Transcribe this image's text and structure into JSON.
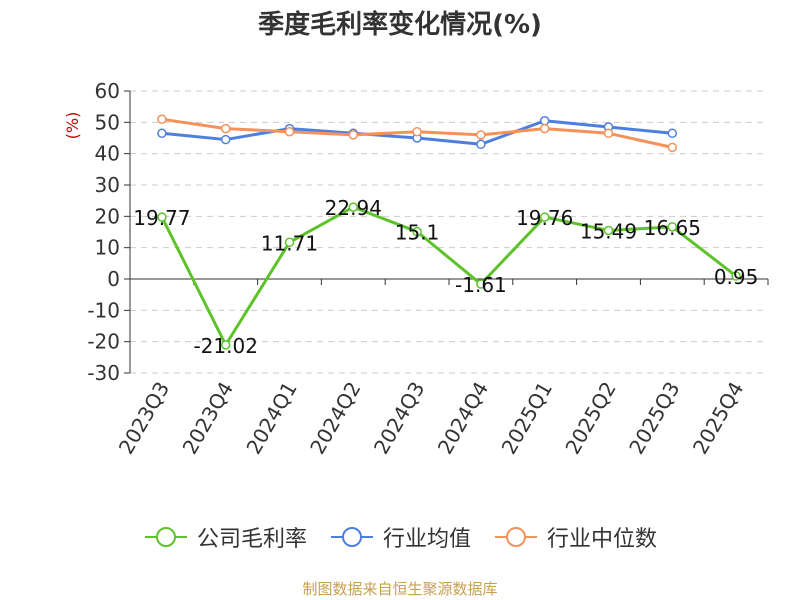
{
  "chart_data": {
    "type": "line",
    "title": "季度毛利率变化情况(%)",
    "ylabel": "(%)",
    "categories": [
      "2023Q3",
      "2023Q4",
      "2024Q1",
      "2024Q2",
      "2024Q3",
      "2024Q4",
      "2025Q1",
      "2025Q2",
      "2025Q3",
      "2025Q4"
    ],
    "ylim": [
      -30,
      60
    ],
    "yticks": [
      "60",
      "50",
      "40",
      "30",
      "20",
      "10",
      "0",
      "-10",
      "-20",
      "-30"
    ],
    "grid": true,
    "legend_position": "bottom",
    "series": [
      {
        "name": "公司毛利率",
        "color": "#5ec22a",
        "values": [
          19.77,
          -21.02,
          11.71,
          22.94,
          15.1,
          -1.61,
          19.76,
          15.49,
          16.65,
          0.95
        ],
        "labels": [
          "19.77",
          "-21.02",
          "11.71",
          "22.94",
          "15.1",
          "-1.61",
          "19.76",
          "15.49",
          "16.65",
          "0.95"
        ]
      },
      {
        "name": "行业均值",
        "color": "#4f7fde",
        "values": [
          46.5,
          44.5,
          48.0,
          46.5,
          45.0,
          43.0,
          50.5,
          48.5,
          46.5,
          null
        ]
      },
      {
        "name": "行业中位数",
        "color": "#f4925a",
        "values": [
          51.0,
          48.0,
          47.0,
          46.0,
          47.0,
          46.0,
          48.0,
          46.5,
          42.0,
          null
        ]
      }
    ]
  },
  "source": "制图数据来自恒生聚源数据库"
}
